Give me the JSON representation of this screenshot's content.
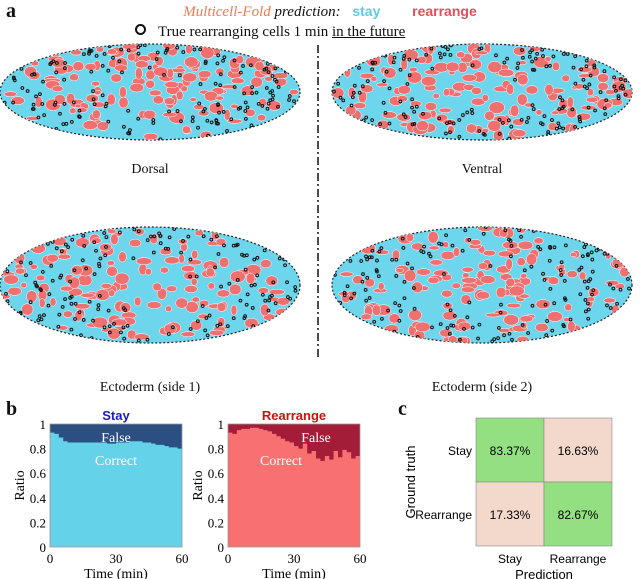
{
  "panel_labels": {
    "a": "a",
    "b": "b",
    "c": "c"
  },
  "legend": {
    "model_name": "Multicell-Fold",
    "prediction_text": "prediction:",
    "stay": "stay",
    "rearrange": "rearrange",
    "marker_text_prefix": "True rearranging cells 1 min ",
    "marker_text_underlined": "in the future",
    "colors": {
      "model_name": "#f07a50",
      "stay": "#5ccbe6",
      "rearrange": "#e0505a"
    }
  },
  "embryo_views": [
    {
      "label": "Dorsal"
    },
    {
      "label": "Ventral"
    },
    {
      "label": "Ectoderm (side 1)"
    },
    {
      "label": "Ectoderm (side 2)"
    }
  ],
  "embryo_colors": {
    "stay": "#6ed6ec",
    "rearrange": "#f07070",
    "true_rearranging_marker": "#111111"
  },
  "chart_data": [
    {
      "type": "area",
      "title": "Stay",
      "title_color": "#1a1acc",
      "xlabel": "Time (min)",
      "ylabel": "Ratio",
      "xlim": [
        0,
        60
      ],
      "ylim": [
        0,
        1
      ],
      "xticks": [
        "0",
        "30",
        "60"
      ],
      "yticks": [
        "0",
        "0.2",
        "0.4",
        "0.6",
        "0.8",
        "1"
      ],
      "series_labels": {
        "false": "False",
        "correct": "Correct"
      },
      "colors": {
        "correct": "#64d2e8",
        "false": "#2c4f82"
      },
      "x": [
        2,
        4,
        6,
        8,
        10,
        12,
        14,
        16,
        18,
        20,
        22,
        24,
        26,
        28,
        30,
        32,
        34,
        36,
        38,
        40,
        42,
        44,
        46,
        48,
        50,
        52,
        54,
        56,
        58,
        60
      ],
      "correct": [
        0.93,
        0.92,
        0.89,
        0.86,
        0.85,
        0.85,
        0.85,
        0.85,
        0.85,
        0.85,
        0.85,
        0.85,
        0.85,
        0.84,
        0.84,
        0.85,
        0.85,
        0.85,
        0.86,
        0.86,
        0.86,
        0.85,
        0.85,
        0.84,
        0.83,
        0.83,
        0.82,
        0.81,
        0.81,
        0.8
      ]
    },
    {
      "type": "area",
      "title": "Rearrange",
      "title_color": "#cc1111",
      "xlabel": "Time (min)",
      "ylabel": "Ratio",
      "xlim": [
        0,
        60
      ],
      "ylim": [
        0,
        1
      ],
      "xticks": [
        "0",
        "30",
        "60"
      ],
      "yticks": [
        "0",
        "0.2",
        "0.4",
        "0.6",
        "0.8",
        "1"
      ],
      "series_labels": {
        "false": "False",
        "correct": "Correct"
      },
      "colors": {
        "correct": "#f87070",
        "false": "#a31c38"
      },
      "x": [
        2,
        4,
        6,
        8,
        10,
        12,
        14,
        16,
        18,
        20,
        22,
        24,
        26,
        28,
        30,
        32,
        34,
        36,
        38,
        40,
        42,
        44,
        46,
        48,
        50,
        52,
        54,
        56,
        58,
        60
      ],
      "correct": [
        0.93,
        0.92,
        0.95,
        0.96,
        0.96,
        0.97,
        0.97,
        0.96,
        0.95,
        0.94,
        0.92,
        0.9,
        0.88,
        0.86,
        0.85,
        0.82,
        0.8,
        0.84,
        0.76,
        0.78,
        0.72,
        0.7,
        0.74,
        0.71,
        0.78,
        0.73,
        0.79,
        0.77,
        0.72,
        0.74
      ]
    },
    {
      "type": "heatmap",
      "xlabel": "Prediction",
      "ylabel": "Ground truth",
      "x_categories": [
        "Stay",
        "Rearrange"
      ],
      "y_categories": [
        "Stay",
        "Rearrange"
      ],
      "values": [
        [
          "83.37%",
          "16.63%"
        ],
        [
          "17.33%",
          "82.67%"
        ]
      ],
      "colors": {
        "diagonal": "#93df82",
        "off_diagonal": "#f3d8cc"
      }
    }
  ]
}
